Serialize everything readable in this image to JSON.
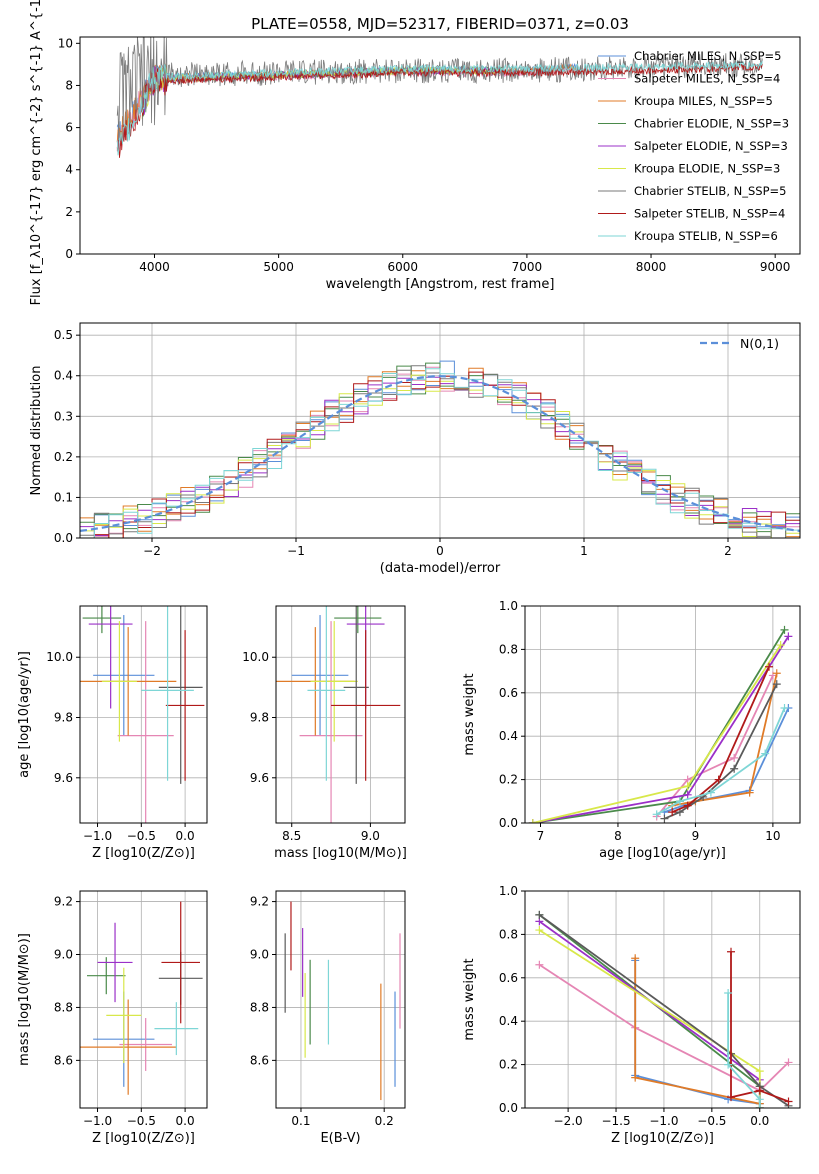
{
  "chart_data": [
    {
      "id": "spectrum",
      "type": "line",
      "title": "PLATE=0558, MJD=52317, FIBERID=0371, z=0.03",
      "xlabel": "wavelength [Angstrom, rest frame]",
      "ylabel": "Flux [f_λ10^{-17} erg cm^{-2} s^{-1} A^{-1}]",
      "xlim": [
        3400,
        9200
      ],
      "ylim": [
        0,
        10.3
      ],
      "xticks": [
        4000,
        5000,
        6000,
        7000,
        8000,
        9000
      ],
      "yticks": [
        0,
        2,
        4,
        6,
        8,
        10
      ],
      "grid": false,
      "legend_position": "top-right",
      "series": [
        {
          "name": "Chabrier MILES, N_SSP=5",
          "color": "#5b8fd9",
          "x": [
            3700,
            4000,
            5000,
            6000,
            7000,
            7400
          ],
          "y": [
            5.5,
            8.4,
            8.5,
            8.7,
            8.7,
            8.9
          ]
        },
        {
          "name": "Salpeter MILES, N_SSP=4",
          "color": "#e586b4",
          "x": [
            3700,
            4000,
            5000,
            6000,
            7000,
            7400
          ],
          "y": [
            5.4,
            8.3,
            8.4,
            8.6,
            8.6,
            8.8
          ]
        },
        {
          "name": "Kroupa MILES, N_SSP=5",
          "color": "#e07b28",
          "x": [
            3700,
            4000,
            5000,
            6000,
            7000,
            7400
          ],
          "y": [
            5.5,
            8.4,
            8.5,
            8.7,
            8.7,
            8.9
          ]
        },
        {
          "name": "Chabrier ELODIE, N_SSP=3",
          "color": "#4a8a4a",
          "x": [
            3900,
            4000,
            5000,
            6000,
            6800
          ],
          "y": [
            7.0,
            8.3,
            8.5,
            8.7,
            8.7
          ]
        },
        {
          "name": "Salpeter ELODIE, N_SSP=3",
          "color": "#9b30c8",
          "x": [
            3900,
            4000,
            5000,
            6000,
            6800
          ],
          "y": [
            7.0,
            8.3,
            8.5,
            8.7,
            8.7
          ]
        },
        {
          "name": "Kroupa ELODIE, N_SSP=3",
          "color": "#d8e84a",
          "x": [
            3900,
            4000,
            5000,
            6000,
            6800
          ],
          "y": [
            7.0,
            8.3,
            8.5,
            8.7,
            8.7
          ]
        },
        {
          "name": "Chabrier STELIB, N_SSP=5",
          "color": "#7a7a7a",
          "x": [
            3700,
            4000,
            5000,
            6000,
            7000,
            8000,
            8900
          ],
          "y": [
            7.5,
            8.5,
            8.6,
            8.7,
            8.7,
            8.9,
            9.0
          ]
        },
        {
          "name": "Salpeter STELIB, N_SSP=4",
          "color": "#b01a1a",
          "x": [
            3700,
            4000,
            5000,
            6000,
            7000,
            8000,
            8900
          ],
          "y": [
            5.0,
            8.2,
            8.4,
            8.6,
            8.6,
            8.7,
            8.9
          ]
        },
        {
          "name": "Kroupa STELIB, N_SSP=6",
          "color": "#7ed6d6",
          "x": [
            3700,
            4000,
            5000,
            6000,
            7000,
            8000,
            8900
          ],
          "y": [
            5.0,
            8.4,
            8.6,
            8.8,
            8.8,
            8.9,
            9.0
          ]
        }
      ]
    },
    {
      "id": "residuals",
      "type": "line",
      "xlabel": "(data-model)/error",
      "ylabel": "Normed distribution",
      "xlim": [
        -2.5,
        2.5
      ],
      "ylim": [
        0,
        0.53
      ],
      "xticks": [
        -2,
        -1,
        0,
        1,
        2
      ],
      "yticks": [
        0.0,
        0.1,
        0.2,
        0.3,
        0.4,
        0.5
      ],
      "grid": true,
      "legend_position": "top-right",
      "normal_curve": {
        "name": "N(0,1)",
        "color": "#5b8fd9",
        "style": "dashed"
      }
    },
    {
      "id": "age-vs-Z",
      "type": "scatter",
      "xlabel": "Z [log10(Z/Z⊙)]",
      "ylabel": "age  [log10(age/yr)]",
      "xlim": [
        -1.2,
        0.25
      ],
      "ylim": [
        9.45,
        10.17
      ],
      "xticks": [
        -1.0,
        -0.5,
        0.0
      ],
      "yticks": [
        9.6,
        9.8,
        10.0
      ],
      "grid": true,
      "points": [
        {
          "x": -0.7,
          "y": 9.94,
          "xerr": 0.35,
          "yerr": 0.2,
          "color": "#5b8fd9"
        },
        {
          "x": -0.45,
          "y": 9.74,
          "xerr": 0.32,
          "yerr": 0.38,
          "color": "#e586b4"
        },
        {
          "x": -0.65,
          "y": 9.92,
          "xerr": 0.55,
          "yerr": 0.18,
          "color": "#e07b28"
        },
        {
          "x": -0.95,
          "y": 10.13,
          "xerr": 0.22,
          "yerr": 0.05,
          "color": "#4a8a4a"
        },
        {
          "x": -0.85,
          "y": 10.11,
          "xerr": 0.25,
          "yerr": 0.28,
          "color": "#9b30c8"
        },
        {
          "x": -0.75,
          "y": 9.92,
          "xerr": 0.2,
          "yerr": 0.2,
          "color": "#d8e84a"
        },
        {
          "x": -0.05,
          "y": 9.9,
          "xerr": 0.25,
          "yerr": 0.32,
          "color": "#5a5a5a"
        },
        {
          "x": -0.0,
          "y": 9.84,
          "xerr": 0.22,
          "yerr": 0.25,
          "color": "#b01a1a"
        },
        {
          "x": -0.2,
          "y": 9.89,
          "xerr": 0.3,
          "yerr": 0.3,
          "color": "#7ed6d6"
        }
      ]
    },
    {
      "id": "age-vs-mass",
      "type": "scatter",
      "xlabel": "mass [log10(M/M⊙)]",
      "xlim": [
        8.4,
        9.22
      ],
      "ylim": [
        9.45,
        10.17
      ],
      "xticks": [
        8.5,
        9.0
      ],
      "yticks": [
        9.6,
        9.8,
        10.0
      ],
      "grid": true,
      "points": [
        {
          "x": 8.68,
          "y": 9.94,
          "xerr": 0.18,
          "yerr": 0.2,
          "color": "#5b8fd9"
        },
        {
          "x": 8.75,
          "y": 9.74,
          "xerr": 0.2,
          "yerr": 0.38,
          "color": "#e586b4"
        },
        {
          "x": 8.65,
          "y": 9.92,
          "xerr": 0.25,
          "yerr": 0.18,
          "color": "#e07b28"
        },
        {
          "x": 8.92,
          "y": 10.13,
          "xerr": 0.15,
          "yerr": 0.05,
          "color": "#4a8a4a"
        },
        {
          "x": 8.97,
          "y": 10.11,
          "xerr": 0.12,
          "yerr": 0.28,
          "color": "#9b30c8"
        },
        {
          "x": 8.77,
          "y": 9.92,
          "xerr": 0.15,
          "yerr": 0.2,
          "color": "#d8e84a"
        },
        {
          "x": 8.91,
          "y": 9.9,
          "xerr": 0.08,
          "yerr": 0.32,
          "color": "#5a5a5a"
        },
        {
          "x": 8.97,
          "y": 9.84,
          "xerr": 0.22,
          "yerr": 0.25,
          "color": "#b01a1a"
        },
        {
          "x": 8.72,
          "y": 9.89,
          "xerr": 0.12,
          "yerr": 0.3,
          "color": "#7ed6d6"
        }
      ]
    },
    {
      "id": "weight-vs-age",
      "type": "line",
      "xlabel": "age  [log10(age/yr)]",
      "ylabel": "mass weight",
      "xlim": [
        6.8,
        10.35
      ],
      "ylim": [
        0.0,
        1.0
      ],
      "xticks": [
        7,
        8,
        9,
        10
      ],
      "yticks": [
        0.0,
        0.2,
        0.4,
        0.6,
        0.8,
        1.0
      ],
      "grid": true,
      "series": [
        {
          "color": "#5b8fd9",
          "x": [
            8.6,
            9.0,
            9.7,
            10.2
          ],
          "y": [
            0.05,
            0.1,
            0.15,
            0.53
          ]
        },
        {
          "color": "#e586b4",
          "x": [
            8.5,
            8.9,
            9.5,
            10.0
          ],
          "y": [
            0.03,
            0.2,
            0.3,
            0.68
          ]
        },
        {
          "color": "#e07b28",
          "x": [
            8.7,
            9.0,
            9.7,
            10.05
          ],
          "y": [
            0.08,
            0.1,
            0.14,
            0.69
          ]
        },
        {
          "color": "#4a8a4a",
          "x": [
            6.9,
            8.8,
            10.15
          ],
          "y": [
            0.0,
            0.1,
            0.89
          ]
        },
        {
          "color": "#9b30c8",
          "x": [
            6.9,
            8.9,
            10.2
          ],
          "y": [
            0.0,
            0.13,
            0.86
          ]
        },
        {
          "color": "#d8e84a",
          "x": [
            6.9,
            8.9,
            10.1
          ],
          "y": [
            0.0,
            0.17,
            0.82
          ]
        },
        {
          "color": "#5a5a5a",
          "x": [
            8.6,
            8.8,
            9.1,
            9.5,
            10.05
          ],
          "y": [
            0.02,
            0.05,
            0.12,
            0.25,
            0.64
          ]
        },
        {
          "color": "#b01a1a",
          "x": [
            8.7,
            8.9,
            9.3,
            9.95
          ],
          "y": [
            0.05,
            0.08,
            0.2,
            0.72
          ]
        },
        {
          "color": "#7ed6d6",
          "x": [
            8.5,
            8.8,
            9.2,
            9.9,
            10.15
          ],
          "y": [
            0.04,
            0.1,
            0.14,
            0.32,
            0.53
          ]
        }
      ]
    },
    {
      "id": "mass-vs-Z",
      "type": "scatter",
      "xlabel": "Z [log10(Z/Z⊙)]",
      "ylabel": "mass [log10(M/M⊙)]",
      "xlim": [
        -1.2,
        0.25
      ],
      "ylim": [
        8.42,
        9.24
      ],
      "xticks": [
        -1.0,
        -0.5,
        0.0
      ],
      "yticks": [
        8.6,
        8.8,
        9.0,
        9.2
      ],
      "grid": true,
      "points": [
        {
          "x": -0.7,
          "y": 8.68,
          "xerr": 0.35,
          "yerr": 0.18,
          "color": "#5b8fd9"
        },
        {
          "x": -0.45,
          "y": 8.66,
          "xerr": 0.3,
          "yerr": 0.1,
          "color": "#e586b4"
        },
        {
          "x": -0.65,
          "y": 8.65,
          "xerr": 0.55,
          "yerr": 0.18,
          "color": "#e07b28"
        },
        {
          "x": -0.9,
          "y": 8.92,
          "xerr": 0.22,
          "yerr": 0.07,
          "color": "#4a8a4a"
        },
        {
          "x": -0.8,
          "y": 8.97,
          "xerr": 0.2,
          "yerr": 0.15,
          "color": "#9b30c8"
        },
        {
          "x": -0.7,
          "y": 8.77,
          "xerr": 0.2,
          "yerr": 0.18,
          "color": "#d8e84a"
        },
        {
          "x": -0.05,
          "y": 8.91,
          "xerr": 0.25,
          "yerr": 0.1,
          "color": "#5a5a5a"
        },
        {
          "x": -0.05,
          "y": 8.97,
          "xerr": 0.22,
          "yerr": 0.23,
          "color": "#b01a1a"
        },
        {
          "x": -0.1,
          "y": 8.72,
          "xerr": 0.25,
          "yerr": 0.1,
          "color": "#7ed6d6"
        }
      ]
    },
    {
      "id": "mass-vs-EBV",
      "type": "scatter",
      "xlabel": "E(B-V)",
      "xlim": [
        0.07,
        0.225
      ],
      "ylim": [
        8.42,
        9.24
      ],
      "xticks": [
        0.1,
        0.2
      ],
      "yticks": [
        8.6,
        8.8,
        9.0,
        9.2
      ],
      "grid": true,
      "points": [
        {
          "x": 0.213,
          "y": 8.68,
          "yerr": 0.18,
          "color": "#5b8fd9"
        },
        {
          "x": 0.219,
          "y": 8.9,
          "yerr": 0.18,
          "color": "#e586b4"
        },
        {
          "x": 0.196,
          "y": 8.67,
          "yerr": 0.22,
          "color": "#e07b28"
        },
        {
          "x": 0.111,
          "y": 8.82,
          "yerr": 0.16,
          "color": "#4a8a4a"
        },
        {
          "x": 0.102,
          "y": 8.97,
          "yerr": 0.13,
          "color": "#9b30c8"
        },
        {
          "x": 0.105,
          "y": 8.77,
          "yerr": 0.16,
          "color": "#d8e84a"
        },
        {
          "x": 0.081,
          "y": 8.93,
          "yerr": 0.15,
          "color": "#5a5a5a"
        },
        {
          "x": 0.088,
          "y": 9.07,
          "yerr": 0.13,
          "color": "#b01a1a"
        },
        {
          "x": 0.133,
          "y": 8.82,
          "yerr": 0.16,
          "color": "#7ed6d6"
        }
      ]
    },
    {
      "id": "weight-vs-Z",
      "type": "line",
      "xlabel": "Z [log10(Z/Z⊙)]",
      "ylabel": "mass weight",
      "xlim": [
        -2.45,
        0.42
      ],
      "ylim": [
        0.0,
        1.0
      ],
      "xticks": [
        -2.0,
        -1.5,
        -1.0,
        -0.5,
        0.0
      ],
      "yticks": [
        0.0,
        0.2,
        0.4,
        0.6,
        0.8,
        1.0
      ],
      "grid": true,
      "series": [
        {
          "color": "#5b8fd9",
          "x": [
            -1.3,
            -1.3,
            -0.33,
            0.0
          ],
          "y": [
            0.68,
            0.15,
            0.04,
            0.02
          ]
        },
        {
          "color": "#e586b4",
          "x": [
            -2.3,
            -1.3,
            0.0,
            0.3
          ],
          "y": [
            0.66,
            0.37,
            0.08,
            0.21
          ]
        },
        {
          "color": "#e07b28",
          "x": [
            -1.3,
            -1.3,
            0.0,
            0.0
          ],
          "y": [
            0.69,
            0.14,
            0.02,
            0.0
          ]
        },
        {
          "color": "#4a8a4a",
          "x": [
            -2.3,
            0.0,
            0.0
          ],
          "y": [
            0.89,
            0.1,
            0.0
          ]
        },
        {
          "color": "#9b30c8",
          "x": [
            -2.3,
            0.0,
            0.0
          ],
          "y": [
            0.86,
            0.13,
            0.0
          ]
        },
        {
          "color": "#d8e84a",
          "x": [
            -2.3,
            0.0,
            0.0
          ],
          "y": [
            0.82,
            0.17,
            0.0
          ]
        },
        {
          "color": "#5a5a5a",
          "x": [
            -2.3,
            -0.3,
            0.0,
            0.3
          ],
          "y": [
            0.89,
            0.25,
            0.1,
            0.01
          ]
        },
        {
          "color": "#b01a1a",
          "x": [
            -0.3,
            -0.3,
            0.0,
            0.3
          ],
          "y": [
            0.72,
            0.05,
            0.08,
            0.03
          ]
        },
        {
          "color": "#7ed6d6",
          "x": [
            -0.33,
            -0.33,
            0.0,
            0.0
          ],
          "y": [
            0.53,
            0.2,
            0.04,
            0.0
          ]
        }
      ]
    }
  ]
}
